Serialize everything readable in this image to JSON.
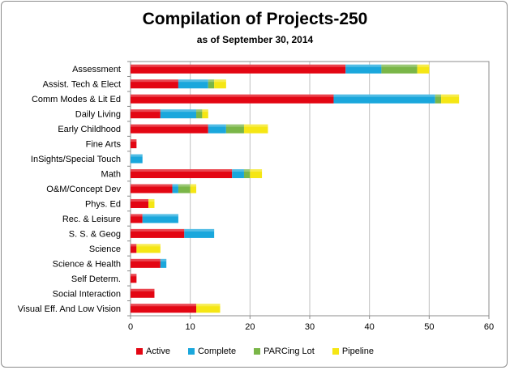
{
  "chart_data": {
    "type": "bar",
    "orientation": "horizontal",
    "stacked": true,
    "title": "Compilation of Projects-250",
    "subtitle": "as of September 30, 2014",
    "categories": [
      "Assessment",
      "Assist. Tech & Elect",
      "Comm Modes & Lit Ed",
      "Daily Living",
      "Early Childhood",
      "Fine Arts",
      "InSights/Special Touch",
      "Math",
      "O&M/Concept Dev",
      "Phys. Ed",
      "Rec. & Leisure",
      "S. S. & Geog",
      "Science",
      "Science & Health",
      "Self Determ.",
      "Social Interaction",
      "Visual Eff. And Low Vision"
    ],
    "series": [
      {
        "name": "Active",
        "color": "#e30613",
        "values": [
          36,
          8,
          34,
          5,
          13,
          1,
          0,
          17,
          7,
          3,
          2,
          9,
          1,
          5,
          1,
          4,
          11
        ]
      },
      {
        "name": "Complete",
        "color": "#1aa7dc",
        "values": [
          6,
          5,
          17,
          6,
          3,
          0,
          2,
          2,
          1,
          0,
          6,
          5,
          0,
          1,
          0,
          0,
          0
        ]
      },
      {
        "name": "PARCing Lot",
        "color": "#7ab648",
        "values": [
          6,
          1,
          1,
          1,
          3,
          0,
          0,
          1,
          2,
          0,
          0,
          0,
          0,
          0,
          0,
          0,
          0
        ]
      },
      {
        "name": "Pipeline",
        "color": "#f5e614",
        "values": [
          2,
          2,
          3,
          1,
          4,
          0,
          0,
          2,
          1,
          1,
          0,
          0,
          4,
          0,
          0,
          0,
          4
        ]
      }
    ],
    "xlim": [
      0,
      60
    ],
    "xticks": [
      0,
      10,
      20,
      30,
      40,
      50,
      60
    ],
    "grid": "vertical",
    "legend": "bottom"
  }
}
